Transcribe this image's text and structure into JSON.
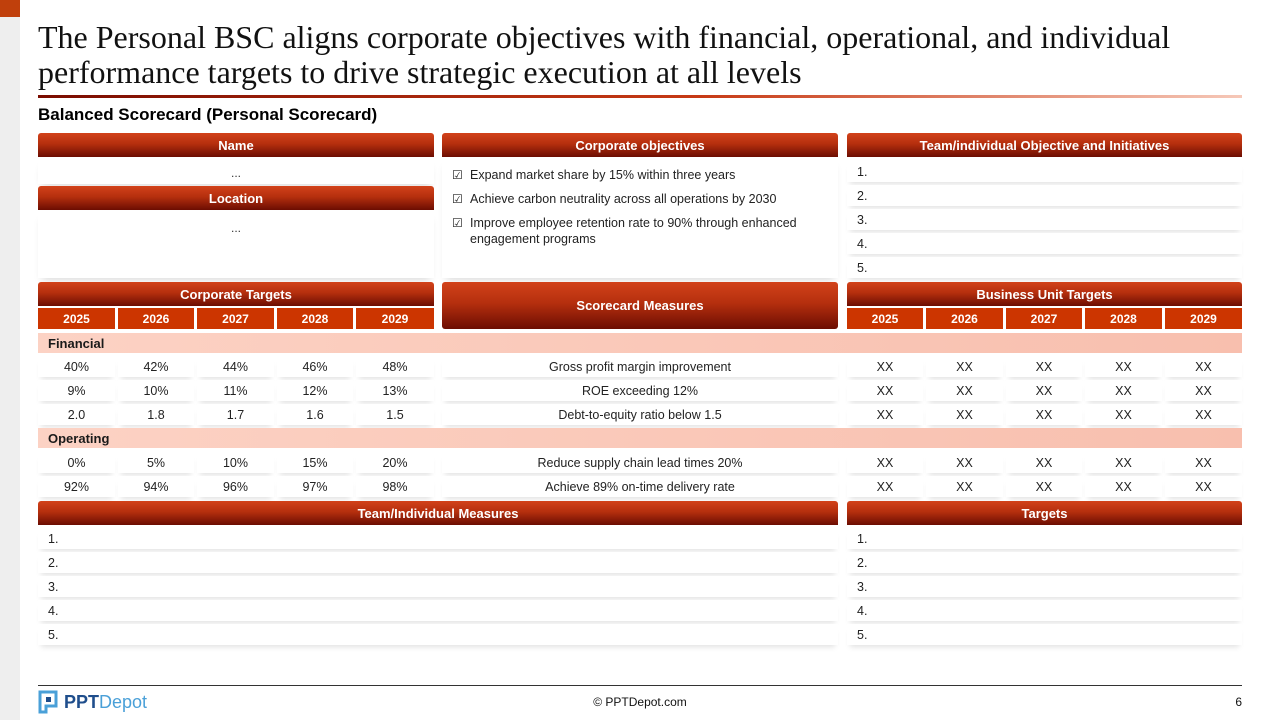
{
  "slide": {
    "title": "The Personal BSC aligns corporate objectives with financial, operational, and individual performance targets to drive strategic execution at all levels",
    "subtitle": "Balanced Scorecard (Personal Scorecard)"
  },
  "colors": {
    "accent": "#cc3500",
    "header_dark": "#6c0d02",
    "category_band": "#fcd2c4",
    "logo_blue": "#1f4e8c"
  },
  "name_panel": {
    "header": "Name",
    "value": "..."
  },
  "location_panel": {
    "header": "Location",
    "value": "..."
  },
  "corporate_objectives": {
    "header": "Corporate objectives",
    "icon": "checkbox-icon",
    "items": [
      "Expand market share by 15% within three years",
      "Achieve carbon neutrality across all operations by 2030",
      "Improve employee retention rate to 90% through enhanced engagement programs"
    ]
  },
  "team_objectives": {
    "header": "Team/individual Objective and Initiatives",
    "items": [
      "1.",
      "2.",
      "3.",
      "4.",
      "5."
    ]
  },
  "corporate_targets": {
    "header": "Corporate Targets",
    "years": [
      "2025",
      "2026",
      "2027",
      "2028",
      "2029"
    ]
  },
  "scorecard_measures": {
    "header": "Scorecard Measures"
  },
  "business_unit_targets": {
    "header": "Business Unit Targets",
    "years": [
      "2025",
      "2026",
      "2027",
      "2028",
      "2029"
    ]
  },
  "categories": [
    {
      "name": "Financial",
      "rows": [
        {
          "corporate": [
            "40%",
            "42%",
            "44%",
            "46%",
            "48%"
          ],
          "measure": "Gross profit margin improvement",
          "business_unit": [
            "XX",
            "XX",
            "XX",
            "XX",
            "XX"
          ]
        },
        {
          "corporate": [
            "9%",
            "10%",
            "11%",
            "12%",
            "13%"
          ],
          "measure": "ROE exceeding 12%",
          "business_unit": [
            "XX",
            "XX",
            "XX",
            "XX",
            "XX"
          ]
        },
        {
          "corporate": [
            "2.0",
            "1.8",
            "1.7",
            "1.6",
            "1.5"
          ],
          "measure": "Debt-to-equity ratio below 1.5",
          "business_unit": [
            "XX",
            "XX",
            "XX",
            "XX",
            "XX"
          ]
        }
      ]
    },
    {
      "name": "Operating",
      "rows": [
        {
          "corporate": [
            "0%",
            "5%",
            "10%",
            "15%",
            "20%"
          ],
          "measure": "Reduce supply chain lead times 20%",
          "business_unit": [
            "XX",
            "XX",
            "XX",
            "XX",
            "XX"
          ]
        },
        {
          "corporate": [
            "92%",
            "94%",
            "96%",
            "97%",
            "98%"
          ],
          "measure": "Achieve 89% on-time delivery rate",
          "business_unit": [
            "XX",
            "XX",
            "XX",
            "XX",
            "XX"
          ]
        }
      ]
    }
  ],
  "team_measures": {
    "header": "Team/Individual Measures",
    "items": [
      "1.",
      "2.",
      "3.",
      "4.",
      "5."
    ]
  },
  "targets": {
    "header": "Targets",
    "items": [
      "1.",
      "2.",
      "3.",
      "4.",
      "5."
    ]
  },
  "footer": {
    "logo_bold": "PPT",
    "logo_light": "Depot",
    "copyright": "© PPTDepot.com",
    "page_number": "6"
  }
}
